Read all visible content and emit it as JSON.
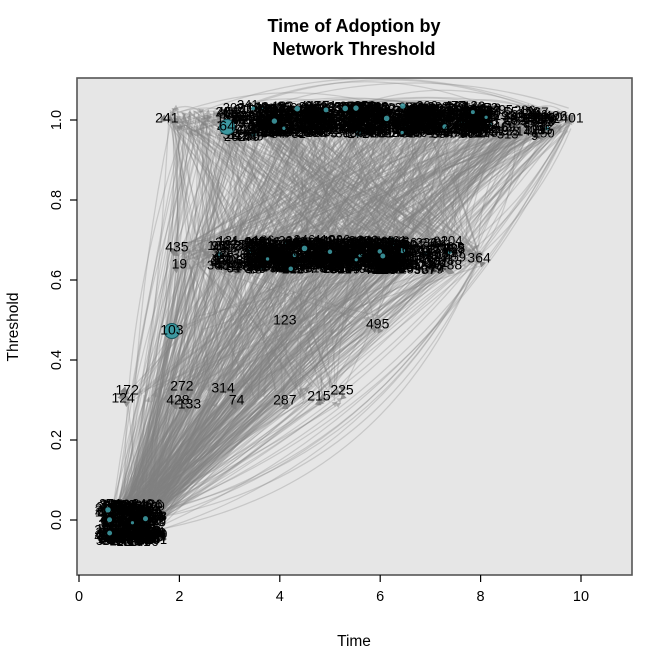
{
  "title": {
    "line1": "Time of Adoption by",
    "line2": "Network Threshold"
  },
  "chart_data": {
    "type": "scatter",
    "subtype": "network-diffusion-graph",
    "title": "Time of Adoption by Network Threshold",
    "xlabel": "Time",
    "ylabel": "Threshold",
    "xlim": [
      0,
      11
    ],
    "ylim": [
      -0.05,
      1.05
    ],
    "x_tick_labels": [
      "0",
      "2",
      "4",
      "6",
      "8",
      "10"
    ],
    "x_tick_values": [
      0,
      2,
      4,
      6,
      8,
      10
    ],
    "y_tick_labels": [
      "0.0",
      "0.2",
      "0.4",
      "0.6",
      "0.8",
      "1.0"
    ],
    "y_tick_values": [
      0,
      0.2,
      0.4,
      0.6,
      0.8,
      1.0
    ],
    "grid": false,
    "legend": null,
    "colors": {
      "plot_background": "#e6e6e6",
      "plot_border": "#555555",
      "edge": "#808080",
      "arrowhead": "#878787",
      "node_highlight": "#3d98a0",
      "node_highlight_edge": "#17565e",
      "label": "#000000"
    },
    "edge_style": {
      "opacity": 0.3,
      "width": 1.25
    },
    "labeled_nodes": [
      {
        "label": "241",
        "time": 1.75,
        "threshold": 1.005
      },
      {
        "label": "206",
        "time": 2.95,
        "threshold": 1.02
      },
      {
        "label": "64",
        "time": 2.95,
        "threshold": 0.985,
        "marker": "teal-circle"
      },
      {
        "label": "478",
        "time": 8.85,
        "threshold": 1.005
      },
      {
        "label": "35",
        "time": 9.05,
        "threshold": 1.005
      },
      {
        "label": "296",
        "time": 9.25,
        "threshold": 1.005
      },
      {
        "label": "496",
        "time": 9.5,
        "threshold": 1.01
      },
      {
        "label": "401",
        "time": 9.82,
        "threshold": 1.005
      },
      {
        "label": "195",
        "time": 9.2,
        "threshold": 0.975
      },
      {
        "label": "435",
        "time": 1.95,
        "threshold": 0.6825
      },
      {
        "label": "19",
        "time": 2.0,
        "threshold": 0.64
      },
      {
        "label": "93",
        "time": 2.79,
        "threshold": 0.685
      },
      {
        "label": "53",
        "time": 3.1,
        "threshold": 0.685
      },
      {
        "label": "45",
        "time": 2.85,
        "threshold": 0.6375
      },
      {
        "label": "48",
        "time": 3.15,
        "threshold": 0.6375
      },
      {
        "label": "456",
        "time": 6.35,
        "threshold": 0.6775
      },
      {
        "label": "32",
        "time": 6.9,
        "threshold": 0.6675
      },
      {
        "label": "204",
        "time": 7.2,
        "threshold": 0.6775
      },
      {
        "label": "246",
        "time": 7.0,
        "threshold": 0.6375
      },
      {
        "label": "288",
        "time": 7.4,
        "threshold": 0.6375
      },
      {
        "label": "364",
        "time": 7.97,
        "threshold": 0.655
      },
      {
        "label": "123",
        "time": 4.1,
        "threshold": 0.5
      },
      {
        "label": "495",
        "time": 5.95,
        "threshold": 0.49
      },
      {
        "label": "103",
        "time": 1.85,
        "threshold": 0.475,
        "marker": "teal-circle"
      },
      {
        "label": "172",
        "time": 0.96,
        "threshold": 0.325
      },
      {
        "label": "124",
        "time": 0.88,
        "threshold": 0.305
      },
      {
        "label": "272",
        "time": 2.05,
        "threshold": 0.335
      },
      {
        "label": "428",
        "time": 1.97,
        "threshold": 0.3
      },
      {
        "label": "133",
        "time": 2.2,
        "threshold": 0.29
      },
      {
        "label": "314",
        "time": 2.87,
        "threshold": 0.33
      },
      {
        "label": "74",
        "time": 3.14,
        "threshold": 0.3
      },
      {
        "label": "287",
        "time": 4.1,
        "threshold": 0.3
      },
      {
        "label": "215",
        "time": 4.78,
        "threshold": 0.31
      },
      {
        "label": "225",
        "time": 5.24,
        "threshold": 0.325
      }
    ],
    "node_clusters": [
      {
        "name": "top-row-blob-1",
        "t_range": [
          3.55,
          4.2
        ],
        "th_range": [
          0.965,
          1.035
        ],
        "density": 1
      },
      {
        "name": "top-row-blob-2",
        "t_range": [
          4.3,
          5.05
        ],
        "th_range": [
          0.965,
          1.035
        ],
        "density": 1
      },
      {
        "name": "top-row-blob-3",
        "t_range": [
          5.25,
          6.25
        ],
        "th_range": [
          0.965,
          1.035
        ],
        "density": 1
      },
      {
        "name": "top-row-blob-4",
        "t_range": [
          6.4,
          7.35
        ],
        "th_range": [
          0.965,
          1.035
        ],
        "density": 1
      },
      {
        "name": "top-row-blob-5",
        "t_range": [
          7.45,
          8.2
        ],
        "th_range": [
          0.965,
          1.035
        ],
        "density": 1
      },
      {
        "name": "top-row-tangle-left",
        "t_range": [
          2.95,
          3.5
        ],
        "th_range": [
          0.955,
          1.04
        ],
        "density": 0.38
      },
      {
        "name": "top-row-tangle-right",
        "t_range": [
          8.3,
          9.55
        ],
        "th_range": [
          0.96,
          1.03
        ],
        "density": 0.2
      },
      {
        "name": "mid-row-tangle-left",
        "t_range": [
          2.75,
          3.4
        ],
        "th_range": [
          0.625,
          0.7
        ],
        "density": 0.3
      },
      {
        "name": "mid-row-blob-1",
        "t_range": [
          3.45,
          4.4
        ],
        "th_range": [
          0.625,
          0.7
        ],
        "density": 1
      },
      {
        "name": "mid-row-blob-2",
        "t_range": [
          4.45,
          5.65
        ],
        "th_range": [
          0.625,
          0.7
        ],
        "density": 1
      },
      {
        "name": "mid-row-blob-3",
        "t_range": [
          5.7,
          6.6
        ],
        "th_range": [
          0.625,
          0.7
        ],
        "density": 1
      },
      {
        "name": "mid-row-tangle-right",
        "t_range": [
          6.65,
          7.55
        ],
        "th_range": [
          0.625,
          0.7
        ],
        "density": 0.26
      },
      {
        "name": "seed-cluster",
        "t_range": [
          0.52,
          1.55
        ],
        "th_range": [
          -0.055,
          0.04
        ],
        "density": 1.15
      }
    ],
    "regions": {
      "seeds": {
        "t": [
          0.6,
          1.5
        ],
        "th": [
          -0.04,
          0.02
        ]
      },
      "row033": {
        "t": [
          0.9,
          5.3
        ],
        "th": [
          0.29,
          0.335
        ]
      },
      "mid05": {
        "t": [
          1.8,
          6.0
        ],
        "th": [
          0.47,
          0.51
        ]
      },
      "row066": {
        "t": [
          1.95,
          8.0
        ],
        "th": [
          0.63,
          0.69
        ]
      },
      "row10": {
        "t": [
          1.75,
          9.8
        ],
        "th": [
          0.97,
          1.03
        ]
      },
      "node364": {
        "t": [
          7.95,
          8.0
        ],
        "th": [
          0.65,
          0.66
        ]
      },
      "node401": {
        "t": [
          9.78,
          9.85
        ],
        "th": [
          1.0,
          1.01
        ]
      }
    },
    "edge_bundles": [
      {
        "from": "seeds",
        "to": "row10",
        "count": 210,
        "curve": 0.1
      },
      {
        "from": "seeds",
        "to": "row066",
        "count": 160,
        "curve": 0.08
      },
      {
        "from": "seeds",
        "to": "row033",
        "count": 55,
        "curve": 0.08
      },
      {
        "from": "seeds",
        "to": "mid05",
        "count": 25,
        "curve": 0.08
      },
      {
        "from": "row033",
        "to": "row066",
        "count": 85,
        "curve": 0.08
      },
      {
        "from": "row033",
        "to": "row10",
        "count": 65,
        "curve": 0.08
      },
      {
        "from": "mid05",
        "to": "row066",
        "count": 30,
        "curve": 0.08
      },
      {
        "from": "mid05",
        "to": "row10",
        "count": 20,
        "curve": 0.08
      },
      {
        "from": "row066",
        "to": "row10",
        "count": 390,
        "curve": 0.07
      },
      {
        "from": "row10",
        "to": "row10",
        "count": 70,
        "curve": 0.22,
        "arc": "up"
      },
      {
        "from": "row066",
        "to": "row066",
        "count": 45,
        "curve": 0.25,
        "arc": "up"
      },
      {
        "from": "seeds",
        "to": "seeds",
        "count": 30,
        "curve": 0.8,
        "arc": "down"
      },
      {
        "from": "seeds",
        "to": "node364",
        "count": 6,
        "curve": -0.25
      },
      {
        "from": "seeds",
        "to": "node401",
        "count": 5,
        "curve": -0.2
      },
      {
        "from": "row066",
        "to": "node401",
        "count": 10,
        "curve": 0.15
      },
      {
        "from": "row10",
        "to": "node364",
        "count": 8,
        "curve": 0.2
      },
      {
        "from": "node364",
        "to": "row10",
        "count": 6,
        "curve": 0.15
      }
    ]
  }
}
